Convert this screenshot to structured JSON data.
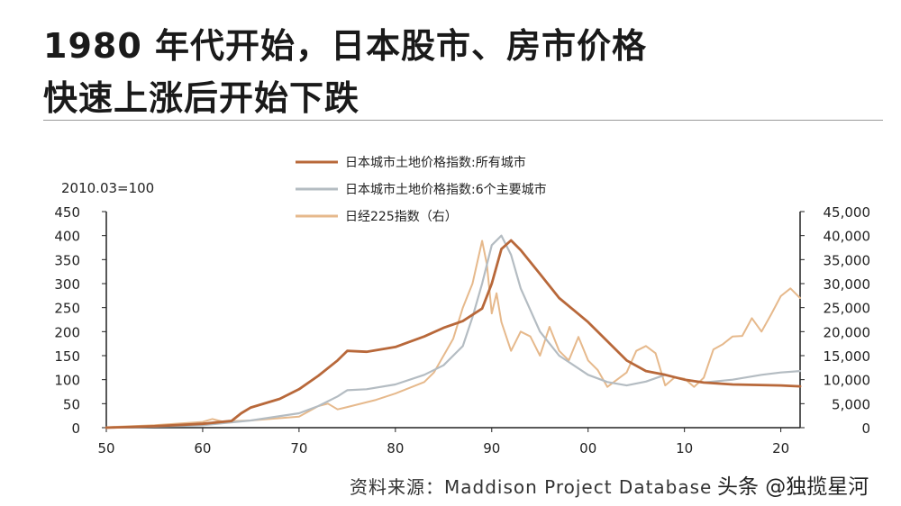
{
  "header": {
    "line1": "1980 年代开始，日本股市、房市价格",
    "line2": "快速上涨后开始下跌"
  },
  "colors": {
    "all_cities": "#b8683a",
    "six_cities": "#b4bcc2",
    "nikkei": "#e6b98c",
    "axis": "#222222"
  },
  "chart_data": {
    "type": "line",
    "base_note": "2010.03=100",
    "x_ticks": [
      "50",
      "60",
      "70",
      "80",
      "90",
      "00",
      "10",
      "20"
    ],
    "xlim": [
      1950,
      2022
    ],
    "y_left_ticks": [
      "0",
      "50",
      "100",
      "150",
      "200",
      "250",
      "300",
      "350",
      "400",
      "450"
    ],
    "ylim_left": [
      0,
      450
    ],
    "y_right_ticks": [
      "0",
      "5,000",
      "10,000",
      "15,000",
      "20,000",
      "25,000",
      "30,000",
      "35,000",
      "40,000",
      "45,000"
    ],
    "ylim_right": [
      0,
      45000
    ],
    "legend_position": "top-center",
    "series": [
      {
        "name": "日本城市土地价格指数:所有城市",
        "axis": "left",
        "x": [
          1950,
          1955,
          1960,
          1963,
          1964,
          1965,
          1968,
          1970,
          1972,
          1974,
          1975,
          1977,
          1980,
          1983,
          1985,
          1987,
          1989,
          1990,
          1991,
          1992,
          1993,
          1995,
          1997,
          2000,
          2002,
          2004,
          2006,
          2008,
          2010,
          2012,
          2015,
          2020,
          2022
        ],
        "y": [
          0,
          3,
          8,
          14,
          30,
          42,
          60,
          80,
          108,
          140,
          160,
          158,
          168,
          190,
          208,
          222,
          248,
          300,
          372,
          390,
          370,
          320,
          270,
          220,
          180,
          140,
          118,
          110,
          100,
          94,
          90,
          88,
          86
        ]
      },
      {
        "name": "日本城市土地价格指数:6个主要城市",
        "axis": "left",
        "x": [
          1950,
          1955,
          1960,
          1965,
          1970,
          1972,
          1974,
          1975,
          1977,
          1980,
          1983,
          1985,
          1987,
          1988,
          1989,
          1990,
          1991,
          1992,
          1993,
          1995,
          1997,
          2000,
          2002,
          2004,
          2006,
          2008,
          2010,
          2012,
          2015,
          2018,
          2020,
          2022
        ],
        "y": [
          0,
          2,
          5,
          15,
          30,
          45,
          65,
          78,
          80,
          90,
          110,
          130,
          170,
          230,
          300,
          380,
          400,
          360,
          290,
          200,
          150,
          110,
          95,
          88,
          96,
          110,
          100,
          94,
          100,
          110,
          115,
          118
        ]
      },
      {
        "name": "日经225指数（右）",
        "axis": "right",
        "x": [
          1950,
          1955,
          1960,
          1961,
          1962,
          1965,
          1970,
          1972,
          1973,
          1974,
          1975,
          1978,
          1980,
          1983,
          1984,
          1986,
          1987,
          1988,
          1989,
          1989.5,
          1990,
          1990.5,
          1991,
          1992,
          1993,
          1994,
          1995,
          1996,
          1997,
          1998,
          1999,
          2000,
          2001,
          2002,
          2003,
          2004,
          2005,
          2006,
          2007,
          2008,
          2009,
          2010,
          2011,
          2012,
          2013,
          2014,
          2015,
          2016,
          2017,
          2018,
          2019,
          2020,
          2021,
          2022
        ],
        "y": [
          100,
          500,
          1200,
          1800,
          1300,
          1500,
          2300,
          4500,
          5000,
          3800,
          4300,
          5800,
          7100,
          9500,
          11500,
          18500,
          25000,
          30000,
          38900,
          34000,
          23800,
          28000,
          22000,
          16000,
          20000,
          19000,
          15000,
          21000,
          16000,
          14000,
          18900,
          14000,
          12000,
          8500,
          10000,
          11500,
          16000,
          17000,
          15500,
          8800,
          10500,
          10200,
          8500,
          10400,
          16300,
          17400,
          19000,
          19100,
          22800,
          20000,
          23600,
          27400,
          29000,
          27000
        ]
      }
    ]
  },
  "footer": {
    "source": "资料来源：Maddison Project Database",
    "watermark": "头条 @独揽星河"
  }
}
